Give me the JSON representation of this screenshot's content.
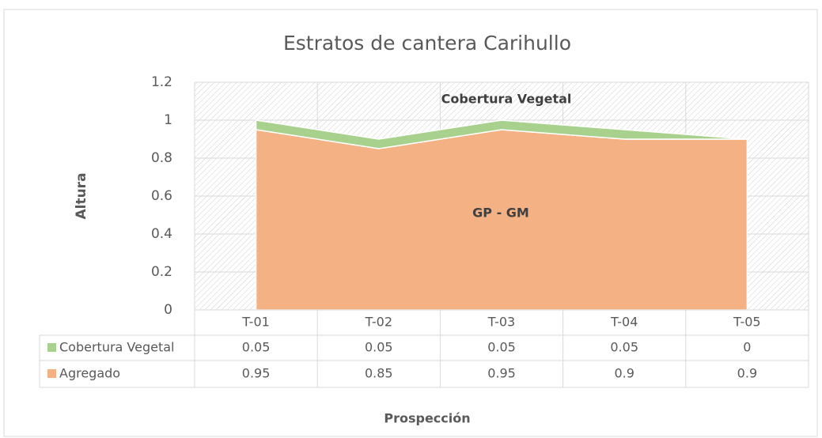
{
  "chart_data": {
    "type": "stacked_area",
    "title": "Estratos de cantera Carihullo",
    "y_label": "Altura",
    "x_label": "Prospección",
    "annotations": [
      "Cobertura Vegetal",
      "GP - GM"
    ],
    "categories": [
      "T-01",
      "T-02",
      "T-03",
      "T-04",
      "T-05"
    ],
    "series": [
      {
        "name": "Cobertura Vegetal",
        "color": "#a9d18e",
        "values": [
          0.05,
          0.05,
          0.05,
          0.05,
          0
        ]
      },
      {
        "name": "Agregado",
        "color": "#f4b183",
        "values": [
          0.95,
          0.85,
          0.95,
          0.9,
          0.9
        ]
      }
    ],
    "ylim": [
      0,
      1.2
    ],
    "yticks": [
      0,
      0.2,
      0.4,
      0.6,
      0.8,
      1,
      1.2
    ],
    "grid": true,
    "data_table": true
  }
}
